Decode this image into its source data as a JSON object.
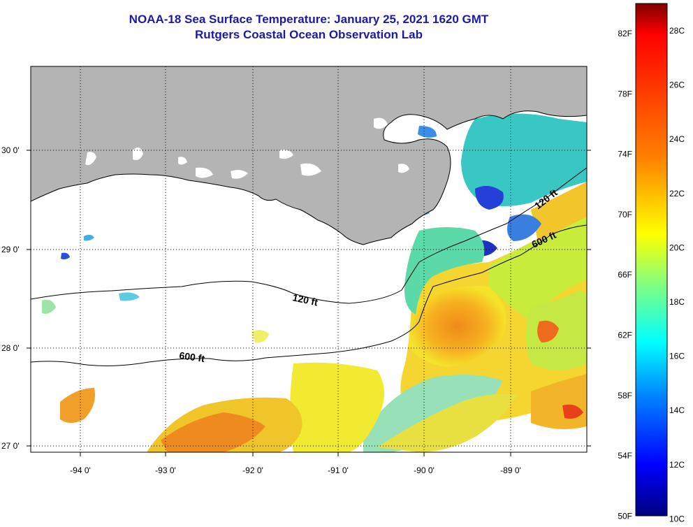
{
  "title": {
    "line1": "NOAA-18 Sea Surface Temperature:  January 25, 2021 1620 GMT",
    "line2": "Rutgers Coastal Ocean Observation Lab"
  },
  "map": {
    "lat_labels": [
      "30 0'",
      "29 0'",
      "28 0'",
      "27 0'"
    ],
    "lon_labels": [
      "-94 0'",
      "-93 0'",
      "-92 0'",
      "-91 0'",
      "-90 0'",
      "-89 0'"
    ],
    "isobaths": {
      "shallow": "120 ft",
      "deep": "600 ft"
    },
    "colors": {
      "land": "#b4b4b4",
      "cloud": "#ffffff",
      "frame": "#000000"
    }
  },
  "colorbar": {
    "fahrenheit": [
      "82F",
      "78F",
      "74F",
      "70F",
      "66F",
      "62F",
      "58F",
      "54F",
      "50F"
    ],
    "celsius": [
      "28C",
      "26C",
      "24C",
      "22C",
      "20C",
      "18C",
      "16C",
      "14C",
      "12C",
      "10C"
    ],
    "gradient": [
      "#7f0000",
      "#ff0000",
      "#ff8000",
      "#ffff00",
      "#80ff80",
      "#00ffff",
      "#0080ff",
      "#0000ff",
      "#00007f"
    ]
  }
}
